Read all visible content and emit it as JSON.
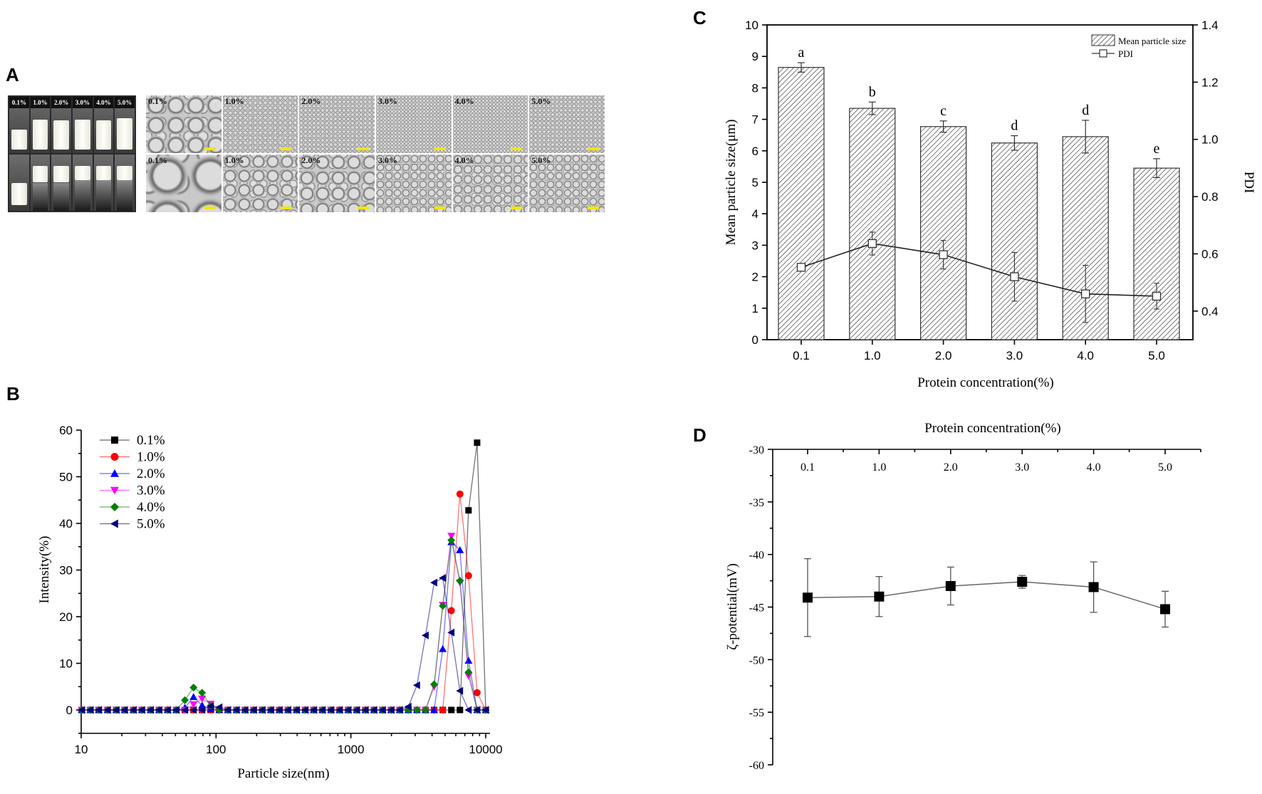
{
  "panels": {
    "a": "A",
    "b": "B",
    "c": "C",
    "d": "D"
  },
  "panel_a": {
    "vial_labels": [
      "0.1%",
      "1.0%",
      "2.0%",
      "3.0%",
      "4.0%",
      "5.0%"
    ],
    "micrograph_labels_top": [
      "0.1%",
      "1.0%",
      "2.0%",
      "3.0%",
      "4.0%",
      "5.0%"
    ],
    "micrograph_labels_bottom": [
      "0.1%",
      "1.0%",
      "2.0%",
      "3.0%",
      "4.0%",
      "5.0%"
    ]
  },
  "chart_data": [
    {
      "id": "B",
      "type": "line",
      "title": "",
      "xlabel": "Particle size(nm)",
      "ylabel": "Intensity(%)",
      "xscale": "log",
      "xlim": [
        10,
        10000
      ],
      "ylim": [
        -5,
        60
      ],
      "xticks": [
        "10",
        "100",
        "1000",
        "10000"
      ],
      "yticks": [
        "0",
        "10",
        "20",
        "30",
        "40",
        "50",
        "60"
      ],
      "legend": "top-left",
      "x": [
        10.1,
        11.7,
        13.5,
        15.7,
        18.2,
        21.0,
        24.4,
        28.2,
        32.7,
        37.8,
        43.8,
        50.7,
        58.8,
        68.1,
        78.8,
        91.3,
        105.7,
        122.4,
        141.8,
        164.2,
        190.1,
        220.2,
        255.0,
        295.3,
        342.0,
        396.1,
        458.7,
        531.2,
        615.1,
        712.4,
        825.0,
        955.4,
        1106,
        1281,
        1484,
        1718,
        1990,
        2305,
        2669,
        3091,
        3580,
        4145,
        4801,
        5560,
        6439,
        7456,
        8635,
        10000
      ],
      "series": [
        {
          "name": "0.1%",
          "color": "#000000",
          "marker": "square",
          "values": [
            0,
            0,
            0,
            0,
            0,
            0,
            0,
            0,
            0,
            0,
            0,
            0,
            0,
            0,
            0,
            0,
            0,
            0,
            0,
            0,
            0,
            0,
            0,
            0,
            0,
            0,
            0,
            0,
            0,
            0,
            0,
            0,
            0,
            0,
            0,
            0,
            0,
            0,
            0,
            0,
            0,
            0,
            0,
            0,
            0,
            42.8,
            57.3,
            0
          ]
        },
        {
          "name": "1.0%",
          "color": "#ff0000",
          "marker": "circle",
          "values": [
            0,
            0,
            0,
            0,
            0,
            0,
            0,
            0,
            0,
            0,
            0,
            0,
            0,
            0,
            0,
            0,
            0,
            0,
            0,
            0,
            0,
            0,
            0,
            0,
            0,
            0,
            0,
            0,
            0,
            0,
            0,
            0,
            0,
            0,
            0,
            0,
            0,
            0,
            0,
            0,
            0,
            0,
            0,
            21.3,
            46.3,
            28.8,
            3.7,
            0
          ]
        },
        {
          "name": "2.0%",
          "color": "#0000ff",
          "marker": "triangle-up",
          "values": [
            0,
            0,
            0,
            0,
            0,
            0,
            0,
            0,
            0,
            0,
            0,
            0,
            0.5,
            2.8,
            1.0,
            0.2,
            0,
            0,
            0,
            0,
            0,
            0,
            0,
            0,
            0,
            0,
            0,
            0,
            0,
            0,
            0,
            0,
            0,
            0,
            0,
            0,
            0,
            0,
            0,
            0,
            0,
            0,
            13.1,
            36.0,
            34.3,
            10.6,
            0,
            0
          ]
        },
        {
          "name": "3.0%",
          "color": "#ff00ff",
          "marker": "triangle-down",
          "values": [
            0,
            0,
            0,
            0,
            0,
            0,
            0,
            0,
            0,
            0,
            0,
            0,
            0,
            1.2,
            2.4,
            1.3,
            0,
            0,
            0,
            0,
            0,
            0,
            0,
            0,
            0,
            0,
            0,
            0,
            0,
            0,
            0,
            0,
            0,
            0,
            0,
            0,
            0,
            0,
            0,
            0,
            0,
            5.0,
            22.5,
            37.3,
            27.3,
            7.3,
            0,
            0
          ]
        },
        {
          "name": "4.0%",
          "color": "#008000",
          "marker": "diamond",
          "values": [
            0,
            0,
            0,
            0,
            0,
            0,
            0,
            0,
            0,
            0,
            0,
            0,
            2.1,
            4.8,
            3.7,
            0.9,
            0,
            0,
            0,
            0,
            0,
            0,
            0,
            0,
            0,
            0,
            0,
            0,
            0,
            0,
            0,
            0,
            0,
            0,
            0,
            0,
            0,
            0,
            0,
            0,
            0,
            5.5,
            22.3,
            36.4,
            27.7,
            8.1,
            0,
            0
          ]
        },
        {
          "name": "5.0%",
          "color": "#000080",
          "marker": "triangle-left",
          "values": [
            0,
            0,
            0,
            0,
            0,
            0,
            0,
            0,
            0,
            0,
            0,
            0,
            0,
            0,
            0,
            0.8,
            0.6,
            0,
            0,
            0,
            0,
            0,
            0,
            0,
            0,
            0,
            0,
            0,
            0,
            0,
            0,
            0,
            0,
            0,
            0,
            0,
            0,
            0,
            0.7,
            5.3,
            16.0,
            27.3,
            28.3,
            16.6,
            4.1,
            0,
            0,
            0
          ]
        }
      ]
    },
    {
      "id": "C",
      "type": "bar",
      "title": "",
      "xlabel": "Protein concentration(%)",
      "ylabel": "Mean particle size(μm)",
      "y2label": "PDI",
      "categories": [
        "0.1",
        "1.0",
        "2.0",
        "3.0",
        "4.0",
        "5.0"
      ],
      "ylim": [
        0,
        10
      ],
      "y2lim": [
        0.3,
        1.4
      ],
      "yticks": [
        "0",
        "1",
        "2",
        "3",
        "4",
        "5",
        "6",
        "7",
        "8",
        "9",
        "10"
      ],
      "y2ticks": [
        "0.4",
        "0.6",
        "0.8",
        "1.0",
        "1.2",
        "1.4"
      ],
      "legend": "top-right",
      "series": [
        {
          "name": "Mean particle size",
          "kind": "bar",
          "values": [
            8.65,
            7.35,
            6.77,
            6.25,
            6.45,
            5.45
          ],
          "errors": [
            0.15,
            0.2,
            0.18,
            0.23,
            0.52,
            0.3
          ],
          "letters": [
            "a",
            "b",
            "c",
            "d",
            "d",
            "e"
          ]
        },
        {
          "name": "PDI",
          "kind": "line",
          "axis": "right",
          "values": [
            0.553,
            0.636,
            0.597,
            0.52,
            0.46,
            0.452
          ],
          "errors": [
            0.01,
            0.04,
            0.05,
            0.085,
            0.1,
            0.045
          ]
        }
      ]
    },
    {
      "id": "D",
      "type": "line",
      "title": "Protein concentration(%)",
      "xlabel": "Protein concentration(%)",
      "ylabel": "ζ-potential(mV)",
      "categories": [
        "0.1",
        "1.0",
        "2.0",
        "3.0",
        "4.0",
        "5.0"
      ],
      "ylim": [
        -60,
        -30
      ],
      "yticks": [
        "-30",
        "-35",
        "-40",
        "-45",
        "-50",
        "-55",
        "-60"
      ],
      "series": [
        {
          "name": "ζ-potential",
          "values": [
            -44.1,
            -44.0,
            -43.0,
            -42.6,
            -43.1,
            -45.2
          ],
          "errors": [
            3.7,
            1.9,
            1.8,
            0.6,
            2.4,
            1.7
          ]
        }
      ]
    }
  ]
}
